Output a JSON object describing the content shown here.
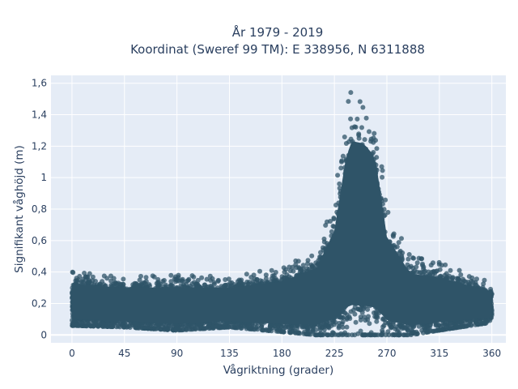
{
  "chart_data": {
    "type": "scatter",
    "title_line1": "År 1979 - 2019",
    "title_line2": "Koordinat (Sweref 99 TM): E 338956, N 6311888",
    "xlabel": "Vågriktning (grader)",
    "ylabel": "Signifikant våghöjd (m)",
    "xlim": [
      -18,
      372
    ],
    "ylim": [
      -0.05,
      1.65
    ],
    "x_ticks": [
      {
        "value": 0,
        "label": "0"
      },
      {
        "value": 45,
        "label": "45"
      },
      {
        "value": 90,
        "label": "90"
      },
      {
        "value": 135,
        "label": "135"
      },
      {
        "value": 180,
        "label": "180"
      },
      {
        "value": 225,
        "label": "225"
      },
      {
        "value": 270,
        "label": "270"
      },
      {
        "value": 315,
        "label": "315"
      },
      {
        "value": 360,
        "label": "360"
      }
    ],
    "y_ticks": [
      {
        "value": 0,
        "label": "0"
      },
      {
        "value": 0.2,
        "label": "0,2"
      },
      {
        "value": 0.4,
        "label": "0,4"
      },
      {
        "value": 0.6,
        "label": "0,6"
      },
      {
        "value": 0.8,
        "label": "0,8"
      },
      {
        "value": 1.0,
        "label": "1"
      },
      {
        "value": 1.2,
        "label": "1,2"
      },
      {
        "value": 1.4,
        "label": "1,4"
      },
      {
        "value": 1.6,
        "label": "1,6"
      }
    ],
    "grid": true,
    "legend": "none",
    "marker_color": "#2f5468",
    "plot_bg": "#e5ecf6",
    "point_cloud_envelope": {
      "description_points": [
        {
          "x": 0,
          "y_min": 0.06,
          "y_max": 0.4
        },
        {
          "x": 45,
          "y_min": 0.05,
          "y_max": 0.37
        },
        {
          "x": 90,
          "y_min": 0.03,
          "y_max": 0.38
        },
        {
          "x": 135,
          "y_min": 0.05,
          "y_max": 0.37
        },
        {
          "x": 180,
          "y_min": 0.02,
          "y_max": 0.43
        },
        {
          "x": 210,
          "y_min": 0.0,
          "y_max": 0.55
        },
        {
          "x": 225,
          "y_min": 0.0,
          "y_max": 0.85
        },
        {
          "x": 235,
          "y_min": 0.0,
          "y_max": 1.45
        },
        {
          "x": 240,
          "y_min": 0.0,
          "y_max": 1.58
        },
        {
          "x": 250,
          "y_min": 0.0,
          "y_max": 1.56
        },
        {
          "x": 260,
          "y_min": 0.0,
          "y_max": 1.45
        },
        {
          "x": 270,
          "y_min": 0.0,
          "y_max": 0.8
        },
        {
          "x": 290,
          "y_min": 0.0,
          "y_max": 0.5
        },
        {
          "x": 315,
          "y_min": 0.03,
          "y_max": 0.46
        },
        {
          "x": 360,
          "y_min": 0.08,
          "y_max": 0.33
        }
      ]
    }
  }
}
